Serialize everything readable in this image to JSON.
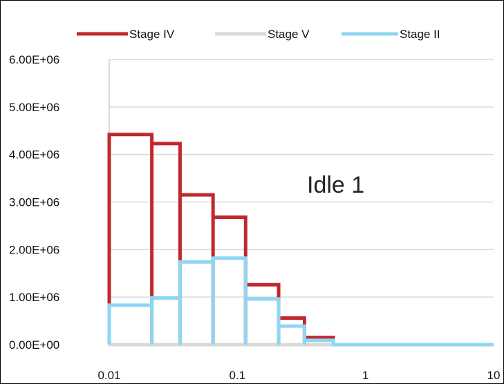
{
  "chart_data": {
    "type": "line",
    "xscale": "log",
    "xlim": [
      0.01,
      10
    ],
    "ylim": [
      0,
      6000000
    ],
    "x_ticks": [
      "0.01",
      "0.1",
      "1",
      "10"
    ],
    "y_ticks": [
      "0.00E+00",
      "1.00E+06",
      "2.00E+06",
      "3.00E+06",
      "4.00E+06",
      "5.00E+06",
      "6.00E+06"
    ],
    "grid": true,
    "legend": "top",
    "annotation": "Idle 1",
    "bin_edges": [
      0.01,
      0.0215,
      0.0357,
      0.0646,
      0.116,
      0.21,
      0.334,
      0.56,
      10
    ],
    "series": [
      {
        "name": "Stage IV",
        "color": "#c0282d",
        "values": [
          4420000,
          4230000,
          3150000,
          2680000,
          1260000,
          560000,
          150000,
          0
        ]
      },
      {
        "name": "Stage V",
        "color": "#d9d9d9",
        "values": [
          0,
          0,
          0,
          0,
          0,
          0,
          0,
          0
        ]
      },
      {
        "name": "Stage II",
        "color": "#8fd6f2",
        "values": [
          830000,
          980000,
          1740000,
          1820000,
          960000,
          390000,
          90000,
          0
        ]
      }
    ]
  }
}
